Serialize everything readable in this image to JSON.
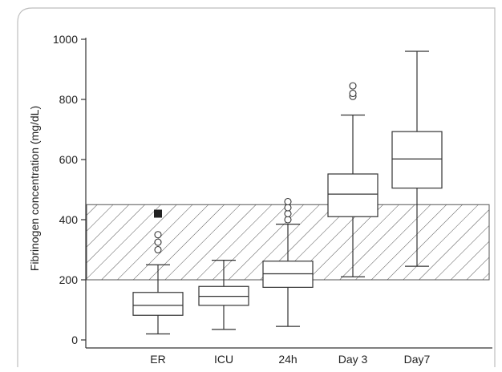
{
  "chart_data": {
    "type": "boxplot",
    "ylabel": "Fibrinogen concentration (mg/dL)",
    "ylim": [
      0,
      1000
    ],
    "yticks": [
      0,
      200,
      400,
      600,
      800,
      1000
    ],
    "categories": [
      "ER",
      "ICU",
      "24h",
      "Day 3",
      "Day7"
    ],
    "reference_band": {
      "low": 200,
      "high": 450,
      "pattern": "diagonal-hatch"
    },
    "boxes": [
      {
        "category": "ER",
        "whisker_low": 20,
        "q1": 82,
        "median": 115,
        "q3": 158,
        "whisker_high": 250,
        "outliers": [
          300,
          325,
          350
        ],
        "extreme_outliers": [
          420
        ]
      },
      {
        "category": "ICU",
        "whisker_low": 35,
        "q1": 115,
        "median": 145,
        "q3": 178,
        "whisker_high": 265,
        "outliers": [],
        "extreme_outliers": []
      },
      {
        "category": "24h",
        "whisker_low": 45,
        "q1": 175,
        "median": 220,
        "q3": 262,
        "whisker_high": 385,
        "outliers": [
          400,
          420,
          440,
          460
        ],
        "extreme_outliers": []
      },
      {
        "category": "Day 3",
        "whisker_low": 210,
        "q1": 410,
        "median": 485,
        "q3": 552,
        "whisker_high": 748,
        "outliers": [
          810,
          820,
          845
        ],
        "extreme_outliers": []
      },
      {
        "category": "Day7",
        "whisker_low": 245,
        "q1": 505,
        "median": 602,
        "q3": 693,
        "whisker_high": 960,
        "outliers": [],
        "extreme_outliers": []
      }
    ]
  }
}
